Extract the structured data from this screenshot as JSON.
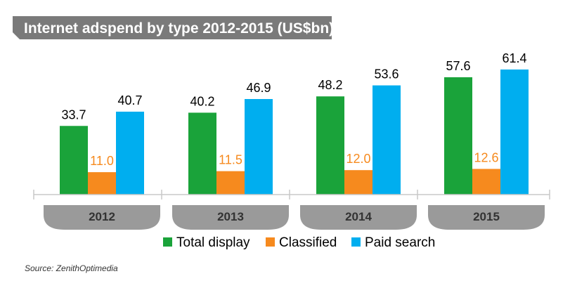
{
  "chart_data": {
    "type": "bar",
    "title": "Internet adspend by type 2012-2015 (US$bn)",
    "categories": [
      "2012",
      "2013",
      "2014",
      "2015"
    ],
    "series": [
      {
        "name": "Total display",
        "values": [
          33.7,
          40.2,
          48.2,
          57.6
        ],
        "color": "#1aa33a",
        "label_color": "#000000",
        "labels": [
          "33.7",
          "40.2",
          "48.2",
          "57.6"
        ]
      },
      {
        "name": "Classified",
        "values": [
          11.0,
          11.5,
          12.0,
          12.6
        ],
        "color": "#f68a1e",
        "label_color": "#f68a1e",
        "labels": [
          "11.0",
          "11.5",
          "12.0",
          "12.6"
        ]
      },
      {
        "name": "Paid search",
        "values": [
          40.7,
          46.9,
          53.6,
          61.4
        ],
        "color": "#00aeef",
        "label_color": "#000000",
        "labels": [
          "40.7",
          "46.9",
          "53.6",
          "61.4"
        ]
      }
    ],
    "ylim": [
      0,
      65
    ],
    "legend": "bottom-center",
    "grid": false
  },
  "source": "Source: ZenithOptimedia",
  "colors": {
    "title_banner": "#7a7a7a",
    "year_tab": "#9a9a9a",
    "axis": "#c8c8c8"
  }
}
